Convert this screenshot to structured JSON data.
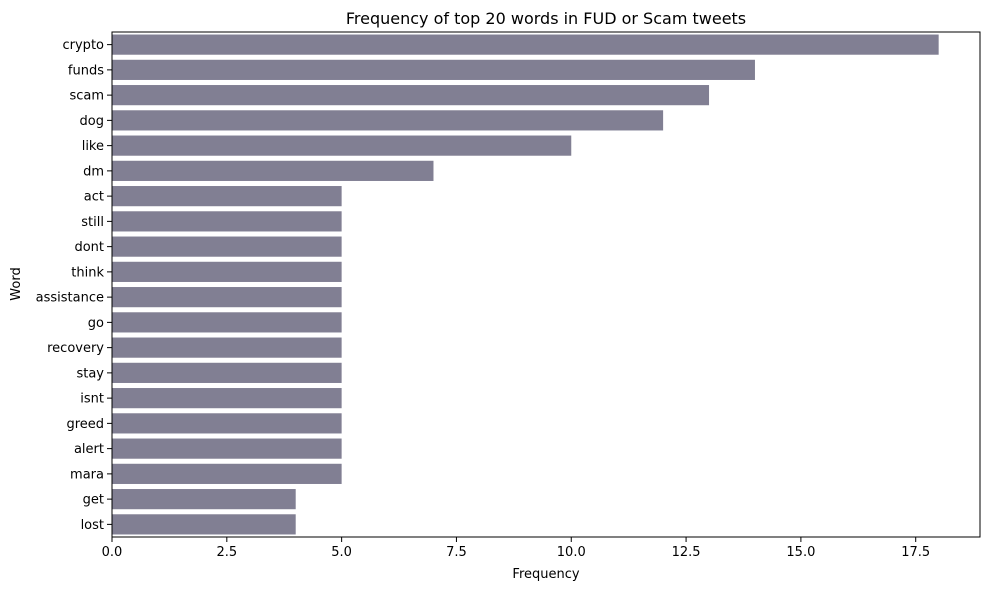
{
  "chart_data": {
    "type": "bar",
    "orientation": "horizontal",
    "title": "Frequency of top 20 words in FUD or Scam tweets",
    "xlabel": "Frequency",
    "ylabel": "Word",
    "categories": [
      "crypto",
      "funds",
      "scam",
      "dog",
      "like",
      "dm",
      "act",
      "still",
      "dont",
      "think",
      "assistance",
      "go",
      "recovery",
      "stay",
      "isnt",
      "greed",
      "alert",
      "mara",
      "get",
      "lost"
    ],
    "values": [
      18,
      14,
      13,
      12,
      10,
      7,
      5,
      5,
      5,
      5,
      5,
      5,
      5,
      5,
      5,
      5,
      5,
      5,
      4,
      4
    ],
    "xlim": [
      0,
      18.9
    ],
    "xticks": [
      0.0,
      2.5,
      5.0,
      7.5,
      10.0,
      12.5,
      15.0,
      17.5
    ],
    "xtick_labels": [
      "0.0",
      "2.5",
      "5.0",
      "7.5",
      "10.0",
      "12.5",
      "15.0",
      "17.5"
    ],
    "bar_color": "#817f93",
    "grid": false,
    "legend": "none"
  }
}
